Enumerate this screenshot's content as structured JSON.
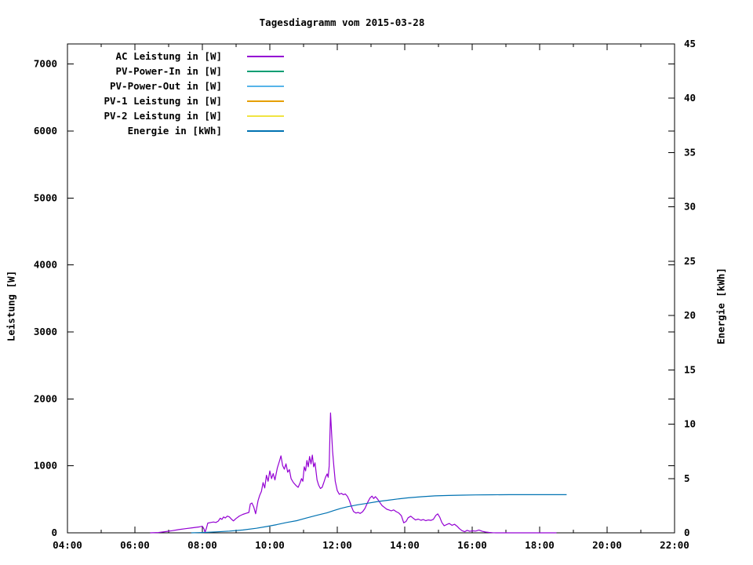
{
  "chart_data": {
    "type": "line",
    "title": "Tagesdiagramm vom 2015-03-28",
    "background_color": "#ffffff",
    "axis_color": "#000000",
    "grid": false,
    "legend_position": "top-left",
    "x_axis": {
      "unit": "time-of-day",
      "range_hours": [
        4,
        22
      ],
      "minor_tick_every_hours": 1,
      "major_ticks": [
        {
          "t": 4,
          "label": "04:00"
        },
        {
          "t": 6,
          "label": "06:00"
        },
        {
          "t": 8,
          "label": "08:00"
        },
        {
          "t": 10,
          "label": "10:00"
        },
        {
          "t": 12,
          "label": "12:00"
        },
        {
          "t": 14,
          "label": "14:00"
        },
        {
          "t": 16,
          "label": "16:00"
        },
        {
          "t": 18,
          "label": "18:00"
        },
        {
          "t": 20,
          "label": "20:00"
        },
        {
          "t": 22,
          "label": "22:00"
        }
      ]
    },
    "y1_axis": {
      "label": "Leistung [W]",
      "range": [
        0,
        7300
      ],
      "ticks": [
        {
          "v": 0,
          "label": "0"
        },
        {
          "v": 1000,
          "label": "1000"
        },
        {
          "v": 2000,
          "label": "2000"
        },
        {
          "v": 3000,
          "label": "3000"
        },
        {
          "v": 4000,
          "label": "4000"
        },
        {
          "v": 5000,
          "label": "5000"
        },
        {
          "v": 6000,
          "label": "6000"
        },
        {
          "v": 7000,
          "label": "7000"
        }
      ]
    },
    "y2_axis": {
      "label": "Energie [kWh]",
      "range": [
        0,
        45
      ],
      "ticks": [
        {
          "v": 0,
          "label": "0"
        },
        {
          "v": 5,
          "label": "5"
        },
        {
          "v": 10,
          "label": "10"
        },
        {
          "v": 15,
          "label": "15"
        },
        {
          "v": 20,
          "label": "20"
        },
        {
          "v": 25,
          "label": "25"
        },
        {
          "v": 30,
          "label": "30"
        },
        {
          "v": 35,
          "label": "35"
        },
        {
          "v": 40,
          "label": "40"
        },
        {
          "v": 45,
          "label": "45"
        }
      ]
    },
    "series": [
      {
        "label": "AC Leistung in [W]",
        "color": "#9400d3",
        "axis": "y1",
        "points": [
          [
            6.45,
            0
          ],
          [
            6.7,
            5
          ],
          [
            6.9,
            18
          ],
          [
            7.1,
            32
          ],
          [
            7.3,
            48
          ],
          [
            7.5,
            62
          ],
          [
            7.7,
            75
          ],
          [
            7.9,
            88
          ],
          [
            8.0,
            98
          ],
          [
            8.05,
            55
          ],
          [
            8.08,
            8
          ],
          [
            8.12,
            70
          ],
          [
            8.16,
            145
          ],
          [
            8.25,
            155
          ],
          [
            8.33,
            162
          ],
          [
            8.4,
            155
          ],
          [
            8.47,
            175
          ],
          [
            8.53,
            218
          ],
          [
            8.58,
            200
          ],
          [
            8.63,
            238
          ],
          [
            8.68,
            222
          ],
          [
            8.74,
            250
          ],
          [
            8.8,
            238
          ],
          [
            8.86,
            205
          ],
          [
            8.92,
            178
          ],
          [
            9.0,
            215
          ],
          [
            9.1,
            252
          ],
          [
            9.2,
            275
          ],
          [
            9.3,
            292
          ],
          [
            9.38,
            305
          ],
          [
            9.42,
            430
          ],
          [
            9.47,
            445
          ],
          [
            9.52,
            390
          ],
          [
            9.58,
            285
          ],
          [
            9.65,
            480
          ],
          [
            9.7,
            560
          ],
          [
            9.75,
            620
          ],
          [
            9.8,
            750
          ],
          [
            9.85,
            670
          ],
          [
            9.9,
            860
          ],
          [
            9.95,
            770
          ],
          [
            10.0,
            925
          ],
          [
            10.05,
            810
          ],
          [
            10.1,
            885
          ],
          [
            10.15,
            790
          ],
          [
            10.22,
            965
          ],
          [
            10.28,
            1060
          ],
          [
            10.33,
            1150
          ],
          [
            10.38,
            1005
          ],
          [
            10.43,
            950
          ],
          [
            10.48,
            1030
          ],
          [
            10.53,
            905
          ],
          [
            10.58,
            945
          ],
          [
            10.63,
            810
          ],
          [
            10.7,
            750
          ],
          [
            10.78,
            705
          ],
          [
            10.84,
            680
          ],
          [
            10.9,
            750
          ],
          [
            10.94,
            810
          ],
          [
            10.98,
            770
          ],
          [
            11.02,
            985
          ],
          [
            11.06,
            925
          ],
          [
            11.1,
            1080
          ],
          [
            11.14,
            985
          ],
          [
            11.18,
            1140
          ],
          [
            11.22,
            1030
          ],
          [
            11.26,
            1160
          ],
          [
            11.3,
            985
          ],
          [
            11.34,
            1045
          ],
          [
            11.4,
            790
          ],
          [
            11.45,
            710
          ],
          [
            11.5,
            662
          ],
          [
            11.55,
            680
          ],
          [
            11.6,
            750
          ],
          [
            11.65,
            830
          ],
          [
            11.7,
            880
          ],
          [
            11.73,
            830
          ],
          [
            11.76,
            1000
          ],
          [
            11.78,
            1400
          ],
          [
            11.8,
            1790
          ],
          [
            11.83,
            1500
          ],
          [
            11.86,
            1220
          ],
          [
            11.9,
            985
          ],
          [
            11.94,
            770
          ],
          [
            12.0,
            630
          ],
          [
            12.06,
            575
          ],
          [
            12.12,
            590
          ],
          [
            12.18,
            570
          ],
          [
            12.24,
            580
          ],
          [
            12.3,
            545
          ],
          [
            12.36,
            480
          ],
          [
            12.42,
            390
          ],
          [
            12.48,
            320
          ],
          [
            12.55,
            295
          ],
          [
            12.62,
            305
          ],
          [
            12.68,
            290
          ],
          [
            12.75,
            315
          ],
          [
            12.82,
            365
          ],
          [
            12.9,
            455
          ],
          [
            12.97,
            520
          ],
          [
            13.03,
            548
          ],
          [
            13.08,
            512
          ],
          [
            13.13,
            540
          ],
          [
            13.2,
            500
          ],
          [
            13.27,
            448
          ],
          [
            13.33,
            405
          ],
          [
            13.4,
            378
          ],
          [
            13.47,
            352
          ],
          [
            13.53,
            342
          ],
          [
            13.6,
            328
          ],
          [
            13.67,
            342
          ],
          [
            13.75,
            315
          ],
          [
            13.82,
            298
          ],
          [
            13.9,
            255
          ],
          [
            13.97,
            150
          ],
          [
            14.04,
            170
          ],
          [
            14.1,
            225
          ],
          [
            14.18,
            248
          ],
          [
            14.25,
            218
          ],
          [
            14.32,
            192
          ],
          [
            14.4,
            205
          ],
          [
            14.48,
            188
          ],
          [
            14.55,
            198
          ],
          [
            14.62,
            182
          ],
          [
            14.7,
            192
          ],
          [
            14.78,
            186
          ],
          [
            14.85,
            202
          ],
          [
            14.92,
            260
          ],
          [
            14.98,
            282
          ],
          [
            15.04,
            232
          ],
          [
            15.1,
            155
          ],
          [
            15.17,
            105
          ],
          [
            15.25,
            125
          ],
          [
            15.32,
            140
          ],
          [
            15.4,
            112
          ],
          [
            15.48,
            128
          ],
          [
            15.55,
            98
          ],
          [
            15.62,
            62
          ],
          [
            15.7,
            32
          ],
          [
            15.78,
            16
          ],
          [
            15.85,
            38
          ],
          [
            15.93,
            22
          ],
          [
            16.0,
            30
          ],
          [
            16.1,
            26
          ],
          [
            16.2,
            42
          ],
          [
            16.3,
            22
          ],
          [
            16.4,
            12
          ],
          [
            16.5,
            6
          ],
          [
            16.6,
            2
          ],
          [
            16.7,
            0
          ],
          [
            17.2,
            0
          ],
          [
            17.8,
            0
          ],
          [
            18.5,
            0
          ]
        ]
      },
      {
        "label": "PV-Power-In in [W]",
        "color": "#009e73",
        "axis": "y1",
        "points": []
      },
      {
        "label": "PV-Power-Out in [W]",
        "color": "#56b4e9",
        "axis": "y1",
        "points": []
      },
      {
        "label": "PV-1 Leistung in [W]",
        "color": "#e69f00",
        "axis": "y1",
        "points": []
      },
      {
        "label": "PV-2 Leistung in [W]",
        "color": "#f0e442",
        "axis": "y1",
        "points": []
      },
      {
        "label": "Energie in [kWh]",
        "color": "#0072b2",
        "axis": "y2",
        "points": [
          [
            7.67,
            0
          ],
          [
            8.0,
            0.03
          ],
          [
            8.4,
            0.09
          ],
          [
            8.8,
            0.16
          ],
          [
            9.2,
            0.26
          ],
          [
            9.6,
            0.42
          ],
          [
            9.9,
            0.58
          ],
          [
            10.2,
            0.75
          ],
          [
            10.5,
            0.95
          ],
          [
            10.8,
            1.12
          ],
          [
            11.1,
            1.38
          ],
          [
            11.4,
            1.62
          ],
          [
            11.7,
            1.85
          ],
          [
            11.9,
            2.05
          ],
          [
            12.1,
            2.25
          ],
          [
            12.3,
            2.4
          ],
          [
            12.6,
            2.58
          ],
          [
            12.9,
            2.72
          ],
          [
            13.2,
            2.88
          ],
          [
            13.5,
            3.0
          ],
          [
            13.8,
            3.12
          ],
          [
            14.1,
            3.22
          ],
          [
            14.5,
            3.32
          ],
          [
            14.9,
            3.4
          ],
          [
            15.3,
            3.44
          ],
          [
            15.7,
            3.47
          ],
          [
            16.1,
            3.49
          ],
          [
            16.6,
            3.5
          ],
          [
            17.1,
            3.51
          ],
          [
            17.6,
            3.51
          ],
          [
            18.1,
            3.51
          ],
          [
            18.8,
            3.51
          ]
        ]
      }
    ]
  }
}
